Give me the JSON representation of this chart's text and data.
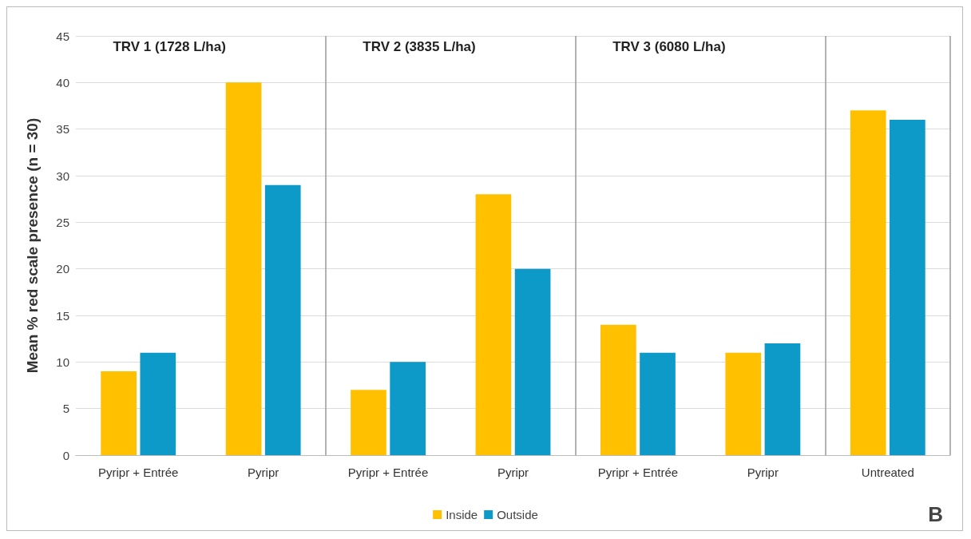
{
  "chart_data": {
    "type": "bar",
    "ylabel": "Mean % red scale presence (n = 30)",
    "categories": [
      "Pyripr + Entrée",
      "Pyripr",
      "Pyripr + Entrée",
      "Pyripr",
      "Pyripr + Entrée",
      "Pyripr",
      "Untreated"
    ],
    "series": [
      {
        "name": "Inside",
        "color": "#ffc000",
        "values": [
          9,
          40,
          7,
          28,
          14,
          11,
          37
        ]
      },
      {
        "name": "Outside",
        "color": "#0e9ac8",
        "values": [
          11,
          29,
          10,
          20,
          11,
          12,
          36
        ]
      }
    ],
    "ylim": [
      0,
      45
    ],
    "yticks": [
      0,
      5,
      10,
      15,
      20,
      25,
      30,
      35,
      40,
      45
    ],
    "grid": "y",
    "legend": "bottom",
    "annotations": [
      "TRV 1 (1728 L/ha)",
      "TRV 2 (3835 L/ha)",
      "TRV 3 (6080 L/ha)",
      "B"
    ]
  }
}
